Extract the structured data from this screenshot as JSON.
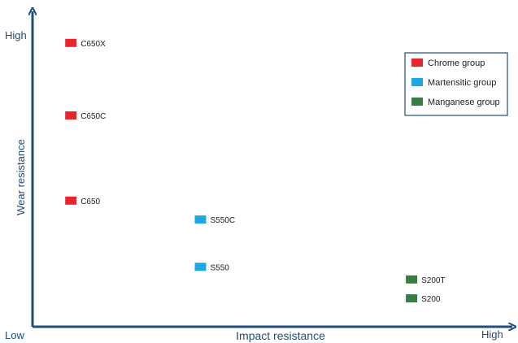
{
  "chart_data": {
    "type": "scatter",
    "x_axis": {
      "label": "Impact resistance",
      "low_label": "Low",
      "high_label": "High",
      "range": [
        0,
        10
      ]
    },
    "y_axis": {
      "label": "Wear resistance",
      "high_label": "High",
      "range": [
        0,
        10
      ]
    },
    "grid": false,
    "legend_position": "top-right",
    "series": [
      {
        "name": "Chrome group",
        "color": "#e8252a",
        "points": [
          {
            "label": "C650X",
            "x": 0.8,
            "y": 9.0
          },
          {
            "label": "C650C",
            "x": 0.8,
            "y": 6.7
          },
          {
            "label": "C650",
            "x": 0.8,
            "y": 4.0
          }
        ]
      },
      {
        "name": "Martensitic group",
        "color": "#1ea7e1",
        "points": [
          {
            "label": "S550C",
            "x": 3.5,
            "y": 3.4
          },
          {
            "label": "S550",
            "x": 3.5,
            "y": 1.9
          }
        ]
      },
      {
        "name": "Manganese group",
        "color": "#3a7d44",
        "points": [
          {
            "label": "S200T",
            "x": 7.9,
            "y": 1.5
          },
          {
            "label": "S200",
            "x": 7.9,
            "y": 0.9
          }
        ]
      }
    ]
  }
}
